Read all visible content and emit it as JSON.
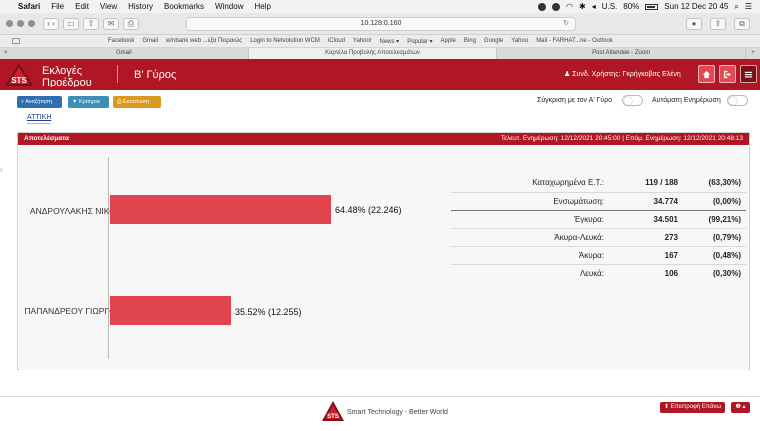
{
  "menubar": {
    "app": "Safari",
    "items": [
      "File",
      "Edit",
      "View",
      "History",
      "Bookmarks",
      "Window",
      "Help"
    ],
    "battery": "80%",
    "locale": "U.S.",
    "clock": "Sun 12 Dec  20 45"
  },
  "browser": {
    "url": "10.128.0.160",
    "bookmarks": [
      "Facebook",
      "Gmail",
      "w/nbank web ...εξα Πειραιώς",
      "Login to Netvolution WCM",
      "iCloud",
      "Yahoo!",
      "News ▾",
      "Popular ▾",
      "Apple",
      "Bing",
      "Google",
      "Yahoo",
      "Mail - FARHAT...ne - Outlook"
    ],
    "tabs": [
      "Gmail",
      "Καρτέλα Προβολής Αποτελεσμάτων",
      "Post Attendee - Zoom"
    ]
  },
  "header": {
    "title": "Εκλογές Προέδρου",
    "round": "Β' Γύρος",
    "user": "Συνδ. Χρήστης: Γκρήγκοβιτς Ελένη"
  },
  "actions": {
    "search": "Αναζήτηση",
    "filters": "Κριτήρια",
    "print": "Εκτύπωση",
    "compare_label": "Σύγκριση με τον Α' Γύρο",
    "auto_update_label": "Αυτόματη Ενημέρωση"
  },
  "region": "ΑΤΤΙΚΗ",
  "results": {
    "title": "Αποτελέσματα",
    "last_update": "Τελευτ. Ενημέρωση: 12/12/2021 20:45:00  |  Επόμ. Ενημέρωση: 12/12/2021 20:48:13",
    "candidates": [
      {
        "name": "ΑΝΔΡΟΥΛΑΚΗΣ ΝΙΚΟΣ",
        "percent": 64.48,
        "votes": "22.246",
        "label": "64.48% (22.246)"
      },
      {
        "name": "ΠΑΠΑΝΔΡΕΟΥ ΓΙΩΡΓΟΣ",
        "percent": 35.52,
        "votes": "12.255",
        "label": "35.52% (12.255)"
      }
    ],
    "stats": [
      {
        "label": "Καταχωρημένα Ε.Τ.:",
        "value": "119 / 188",
        "pct": "(63,30%)"
      },
      {
        "label": "Ενσωμάτωση:",
        "value": "34.774",
        "pct": "(0,00%)"
      },
      {
        "label": "Έγκυρα:",
        "value": "34.501",
        "pct": "(99,21%)"
      },
      {
        "label": "Άκυρα-Λευκά:",
        "value": "273",
        "pct": "(0,79%)"
      },
      {
        "label": "Άκυρα:",
        "value": "167",
        "pct": "(0,48%)"
      },
      {
        "label": "Λευκά:",
        "value": "106",
        "pct": "(0,30%)"
      }
    ]
  },
  "footer": {
    "brand": "Smart Technology - Better World",
    "back_to_top": "Επιστροφή Επάνω"
  },
  "colors": {
    "brand_red": "#b01624",
    "bar_red": "#e0454e",
    "search_btn": "#2f6fb0",
    "filter_btn": "#3a8fb7",
    "print_btn": "#d99a1e"
  }
}
